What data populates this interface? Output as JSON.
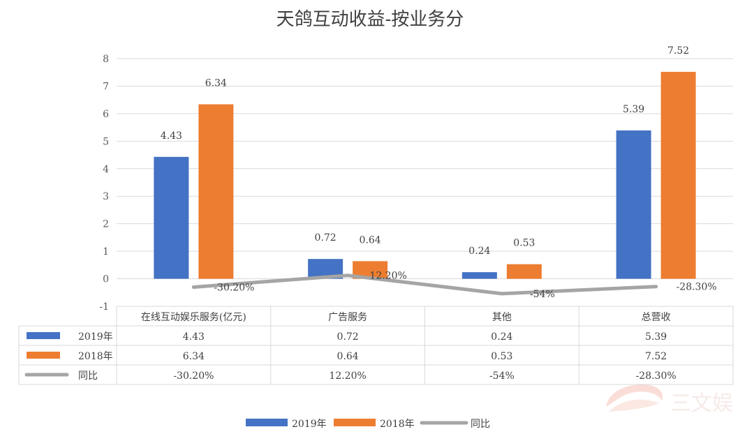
{
  "chart_data": {
    "type": "bar",
    "title": "天鸽互动收益-按业务分",
    "categories": [
      "在线互动娱乐服务(亿元)",
      "广告服务",
      "其他",
      "总营收"
    ],
    "ylim": [
      -1,
      8
    ],
    "yticks": [
      "8",
      "7",
      "6",
      "5",
      "4",
      "3",
      "2",
      "1",
      "0",
      "-1"
    ],
    "grid": true,
    "series": [
      {
        "name": "2019年",
        "kind": "bar",
        "color": "#4472C4",
        "values": [
          4.43,
          0.72,
          0.24,
          5.39
        ],
        "labels": [
          "4.43",
          "0.72",
          "0.24",
          "5.39"
        ]
      },
      {
        "name": "2018年",
        "kind": "bar",
        "color": "#ED7D31",
        "values": [
          6.34,
          0.64,
          0.53,
          7.52
        ],
        "labels": [
          "6.34",
          "0.64",
          "0.53",
          "7.52"
        ]
      },
      {
        "name": "同比",
        "kind": "line",
        "color": "#A5A5A5",
        "values": [
          -0.302,
          0.122,
          -0.54,
          -0.283
        ],
        "labels": [
          "-30.20%",
          "12.20%",
          "-54%",
          "-28.30%"
        ]
      }
    ],
    "legend_position": "bottom"
  },
  "watermark": {
    "text": "三文娱"
  }
}
